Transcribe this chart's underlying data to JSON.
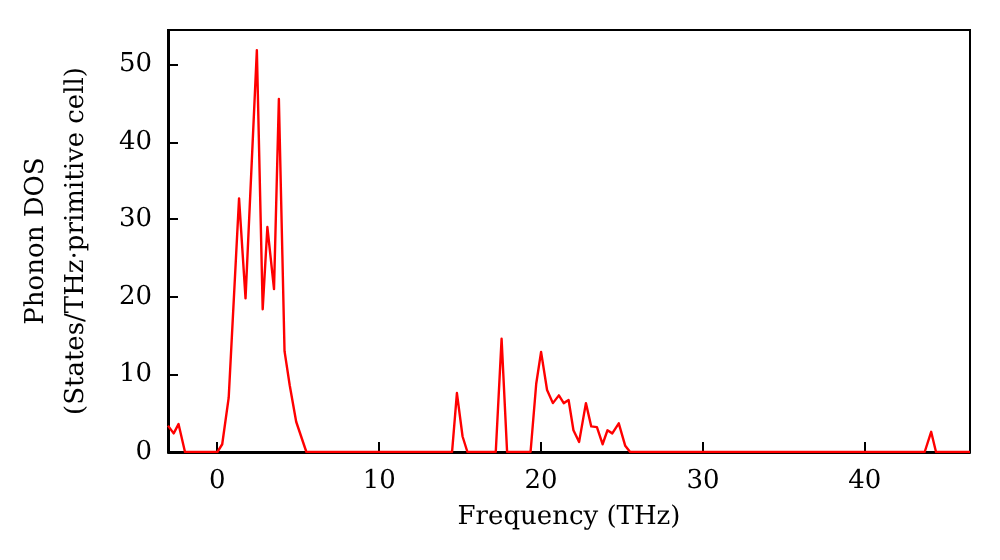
{
  "chart_data": {
    "type": "line",
    "xlabel": "Frequency (THz)",
    "ylabel": "Phonon DOS\n(States/THz·primitive cell)",
    "x": [
      -3.05,
      -2.7,
      -2.4,
      -2.0,
      0.0,
      0.3,
      0.7,
      1.34,
      1.74,
      2.44,
      2.8,
      3.09,
      3.5,
      3.8,
      4.15,
      4.47,
      4.87,
      5.5,
      14.5,
      14.8,
      15.15,
      15.45,
      17.2,
      17.56,
      17.9,
      19.35,
      19.7,
      20.0,
      20.37,
      20.73,
      21.1,
      21.4,
      21.7,
      22.0,
      22.35,
      22.77,
      23.1,
      23.45,
      23.8,
      24.1,
      24.4,
      24.8,
      25.2,
      25.5,
      43.7,
      44.1,
      44.4,
      46.5
    ],
    "series": [
      {
        "color": "#ff0000",
        "values": [
          3.4,
          2.4,
          3.6,
          0,
          0,
          1,
          7,
          32.7,
          19.8,
          51.8,
          18.4,
          29,
          21,
          45.5,
          13,
          8.6,
          3.9,
          0,
          0,
          7.6,
          2,
          0,
          0,
          14.6,
          0,
          0,
          8.8,
          12.9,
          8,
          6.3,
          7.3,
          6.3,
          6.7,
          2.8,
          1.3,
          6.3,
          3.3,
          3.2,
          1,
          2.8,
          2.4,
          3.7,
          0.8,
          0,
          0,
          2.6,
          0,
          0
        ]
      }
    ],
    "xlim": [
      -3.05,
      46.5
    ],
    "xticks": [
      0,
      10,
      20,
      30,
      40
    ],
    "ylim": [
      0,
      54.4
    ],
    "yticks": [
      0,
      10,
      20,
      30,
      40,
      50
    ],
    "grid": false,
    "marker": "none",
    "line_style": "solid"
  }
}
